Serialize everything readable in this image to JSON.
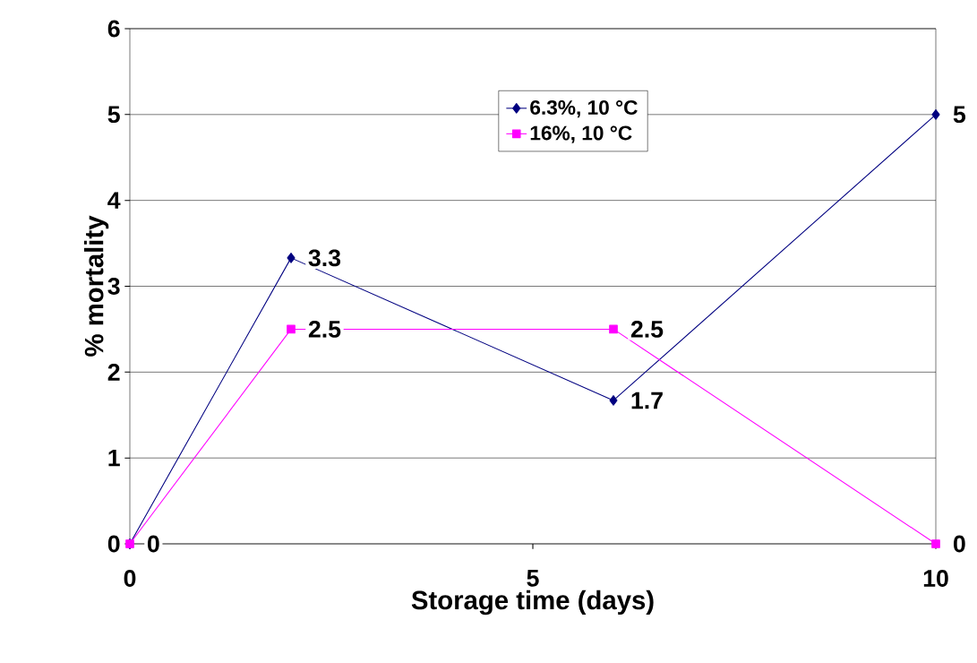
{
  "chart_data": {
    "type": "line",
    "xlabel": "Storage time (days)",
    "ylabel": "% mortality",
    "xlim": [
      0,
      10
    ],
    "ylim": [
      0,
      6
    ],
    "xticks": [
      0,
      5,
      10
    ],
    "yticks": [
      0,
      1,
      2,
      3,
      4,
      5,
      6
    ],
    "grid": "y",
    "legend": "top",
    "series": [
      {
        "name": "6.3%, 10 °C",
        "color": "#000080",
        "marker": "diamond",
        "x": [
          0,
          2,
          6,
          10
        ],
        "values": [
          0,
          3.33,
          1.67,
          5
        ],
        "value_labels": [
          "0",
          "3.3",
          "1.7",
          "5"
        ]
      },
      {
        "name": "16%, 10 °C",
        "color": "#ff00ff",
        "marker": "square",
        "x": [
          0,
          2,
          6,
          10
        ],
        "values": [
          0,
          2.5,
          2.5,
          0
        ],
        "value_labels": [
          null,
          "2.5",
          "2.5",
          "0"
        ]
      }
    ]
  }
}
